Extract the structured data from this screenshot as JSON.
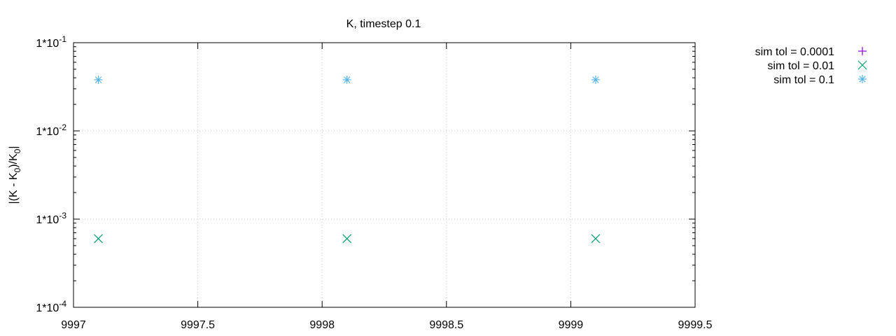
{
  "chart_data": {
    "type": "scatter",
    "title": "K, timestep 0.1",
    "ylabel": "|(K - K0)/K0|",
    "ylabel_parts": {
      "a": "|(K - K",
      "sub1": "0",
      "b": ")/K",
      "sub2": "0",
      "c": "|"
    },
    "xlabel": "",
    "xlim": [
      9997,
      9999.5
    ],
    "ylim": [
      0.0001,
      0.1
    ],
    "yscale": "log",
    "grid": true,
    "legend_position": "outside-right-top",
    "x_ticks": [
      9997,
      9997.5,
      9998,
      9998.5,
      9999,
      9999.5
    ],
    "x_tick_labels": [
      "9997",
      "9997.5",
      "9998",
      "9998.5",
      "9999",
      "9999.5"
    ],
    "y_ticks": [
      0.0001,
      0.001,
      0.01,
      0.1
    ],
    "y_tick_labels": [
      {
        "base": "1*10",
        "exp": "-4"
      },
      {
        "base": "1*10",
        "exp": "-3"
      },
      {
        "base": "1*10",
        "exp": "-2"
      },
      {
        "base": "1*10",
        "exp": "-1"
      }
    ],
    "series": [
      {
        "name": "sim tol = 0.0001",
        "marker": "plus",
        "color": "#9400d3",
        "points": []
      },
      {
        "name": "sim tol = 0.01",
        "marker": "cross",
        "color": "#009e73",
        "points": [
          [
            9997.1,
            0.0006
          ],
          [
            9998.1,
            0.0006
          ],
          [
            9999.1,
            0.0006
          ]
        ]
      },
      {
        "name": "sim tol = 0.1",
        "marker": "star",
        "color": "#56b4e9",
        "points": [
          [
            9997.1,
            0.038
          ],
          [
            9998.1,
            0.038
          ],
          [
            9999.1,
            0.038
          ]
        ]
      }
    ]
  }
}
